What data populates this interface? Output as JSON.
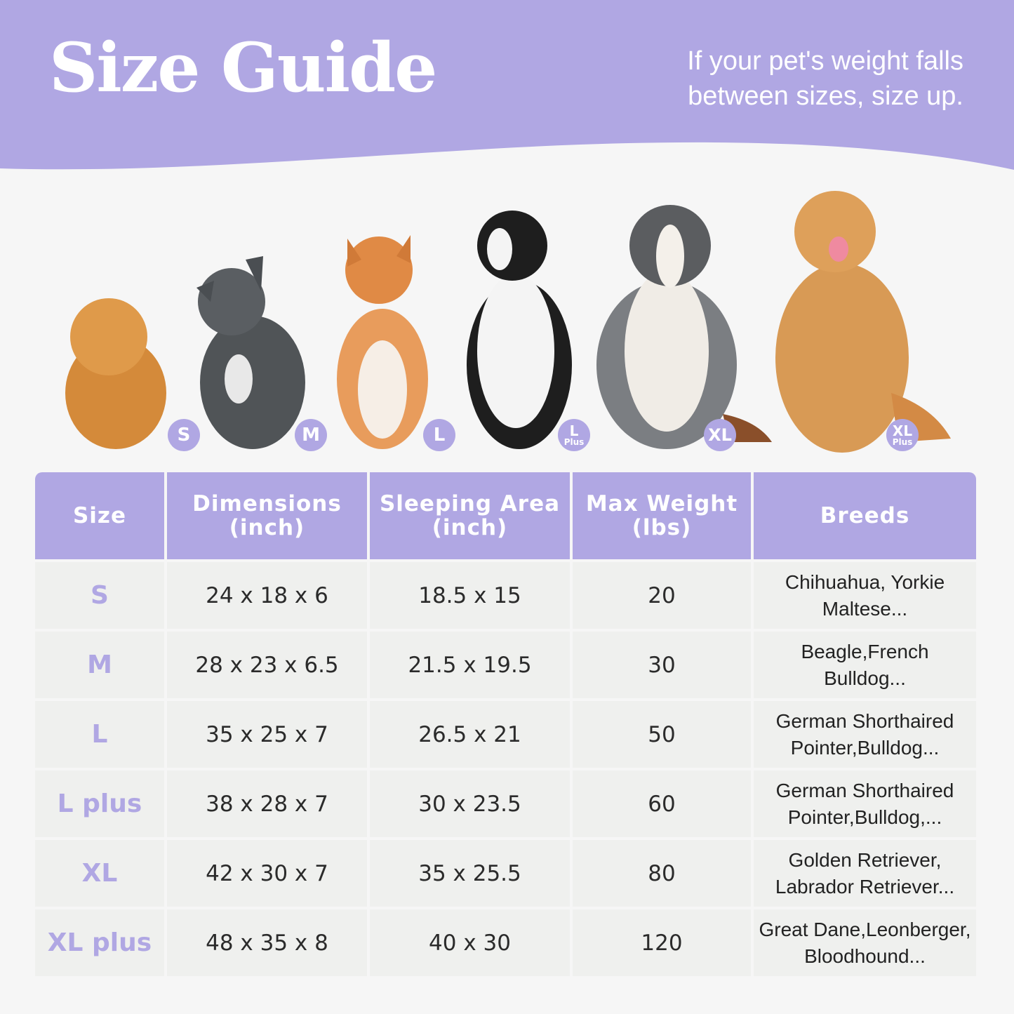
{
  "header": {
    "title": "Size Guide",
    "tip_line1": "If your pet's weight falls",
    "tip_line2": "between sizes, size up."
  },
  "colors": {
    "accent": "#b0a7e3",
    "row_bg": "#eff0ee",
    "page_bg": "#f6f6f6"
  },
  "dogs": [
    {
      "breed_icon": "pomeranian",
      "badge": "S",
      "badge_sub": ""
    },
    {
      "breed_icon": "french-bulldog",
      "badge": "M",
      "badge_sub": ""
    },
    {
      "breed_icon": "shiba-inu",
      "badge": "L",
      "badge_sub": ""
    },
    {
      "breed_icon": "border-collie",
      "badge": "L",
      "badge_sub": "Plus"
    },
    {
      "breed_icon": "australian-shepherd",
      "badge": "XL",
      "badge_sub": ""
    },
    {
      "breed_icon": "golden-retriever",
      "badge": "XL",
      "badge_sub": "Plus"
    }
  ],
  "table": {
    "headers": [
      {
        "line1": "Size",
        "line2": ""
      },
      {
        "line1": "Dimensions",
        "line2": "(inch)"
      },
      {
        "line1": "Sleeping Area",
        "line2": "(inch)"
      },
      {
        "line1": "Max Weight",
        "line2": "(lbs)"
      },
      {
        "line1": "Breeds",
        "line2": ""
      }
    ],
    "rows": [
      {
        "size": "S",
        "dimensions": "24 x 18 x 6",
        "sleeping": "18.5 x 15",
        "weight": "20",
        "breeds1": "Chihuahua, Yorkie",
        "breeds2": "Maltese..."
      },
      {
        "size": "M",
        "dimensions": "28 x 23 x 6.5",
        "sleeping": "21.5 x 19.5",
        "weight": "30",
        "breeds1": "Beagle,French",
        "breeds2": "Bulldog..."
      },
      {
        "size": "L",
        "dimensions": "35 x 25 x 7",
        "sleeping": "26.5 x 21",
        "weight": "50",
        "breeds1": "German Shorthaired",
        "breeds2": "Pointer,Bulldog..."
      },
      {
        "size": "L plus",
        "dimensions": "38 x 28 x 7",
        "sleeping": "30 x 23.5",
        "weight": "60",
        "breeds1": "German Shorthaired",
        "breeds2": "Pointer,Bulldog,..."
      },
      {
        "size": "XL",
        "dimensions": "42 x 30 x 7",
        "sleeping": "35 x 25.5",
        "weight": "80",
        "breeds1": "Golden Retriever,",
        "breeds2": "Labrador Retriever..."
      },
      {
        "size": "XL plus",
        "dimensions": "48 x 35 x 8",
        "sleeping": "40 x 30",
        "weight": "120",
        "breeds1": "Great Dane,Leonberger,",
        "breeds2": "Bloodhound..."
      }
    ]
  }
}
